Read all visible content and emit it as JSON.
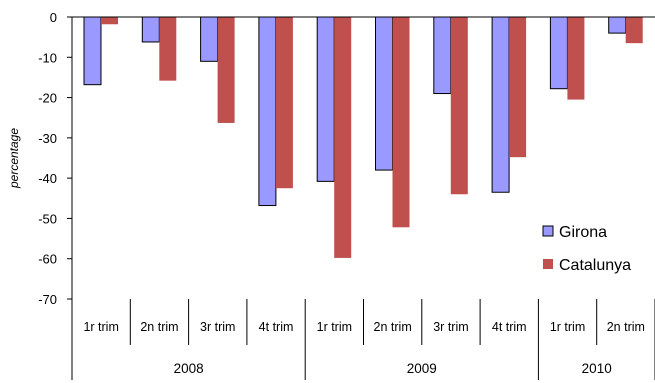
{
  "chart_data": {
    "type": "bar",
    "ylabel": "percentage",
    "ylim": [
      -70,
      0
    ],
    "yticks": [
      0,
      -10,
      -20,
      -30,
      -40,
      -50,
      -60,
      -70
    ],
    "legend_position": "bottom-right",
    "categories": [
      "1r trim",
      "2n trim",
      "3r trim",
      "4t trim",
      "1r trim",
      "2n trim",
      "3r trim",
      "4t trim",
      "1r trim",
      "2n trim"
    ],
    "year_groups": [
      {
        "label": "2008",
        "count": 4
      },
      {
        "label": "2009",
        "count": 4
      },
      {
        "label": "2010",
        "count": 2
      }
    ],
    "series": [
      {
        "name": "Girona",
        "color": "#9999FF",
        "values": [
          -16.8,
          -6.2,
          -11.0,
          -46.8,
          -40.8,
          -38.0,
          -19.0,
          -43.5,
          -17.8,
          -4.0
        ]
      },
      {
        "name": "Catalunya",
        "color": "#C0504D",
        "values": [
          -1.8,
          -15.8,
          -26.3,
          -42.5,
          -59.8,
          -52.2,
          -44.0,
          -34.8,
          -20.5,
          -6.5
        ]
      }
    ]
  }
}
